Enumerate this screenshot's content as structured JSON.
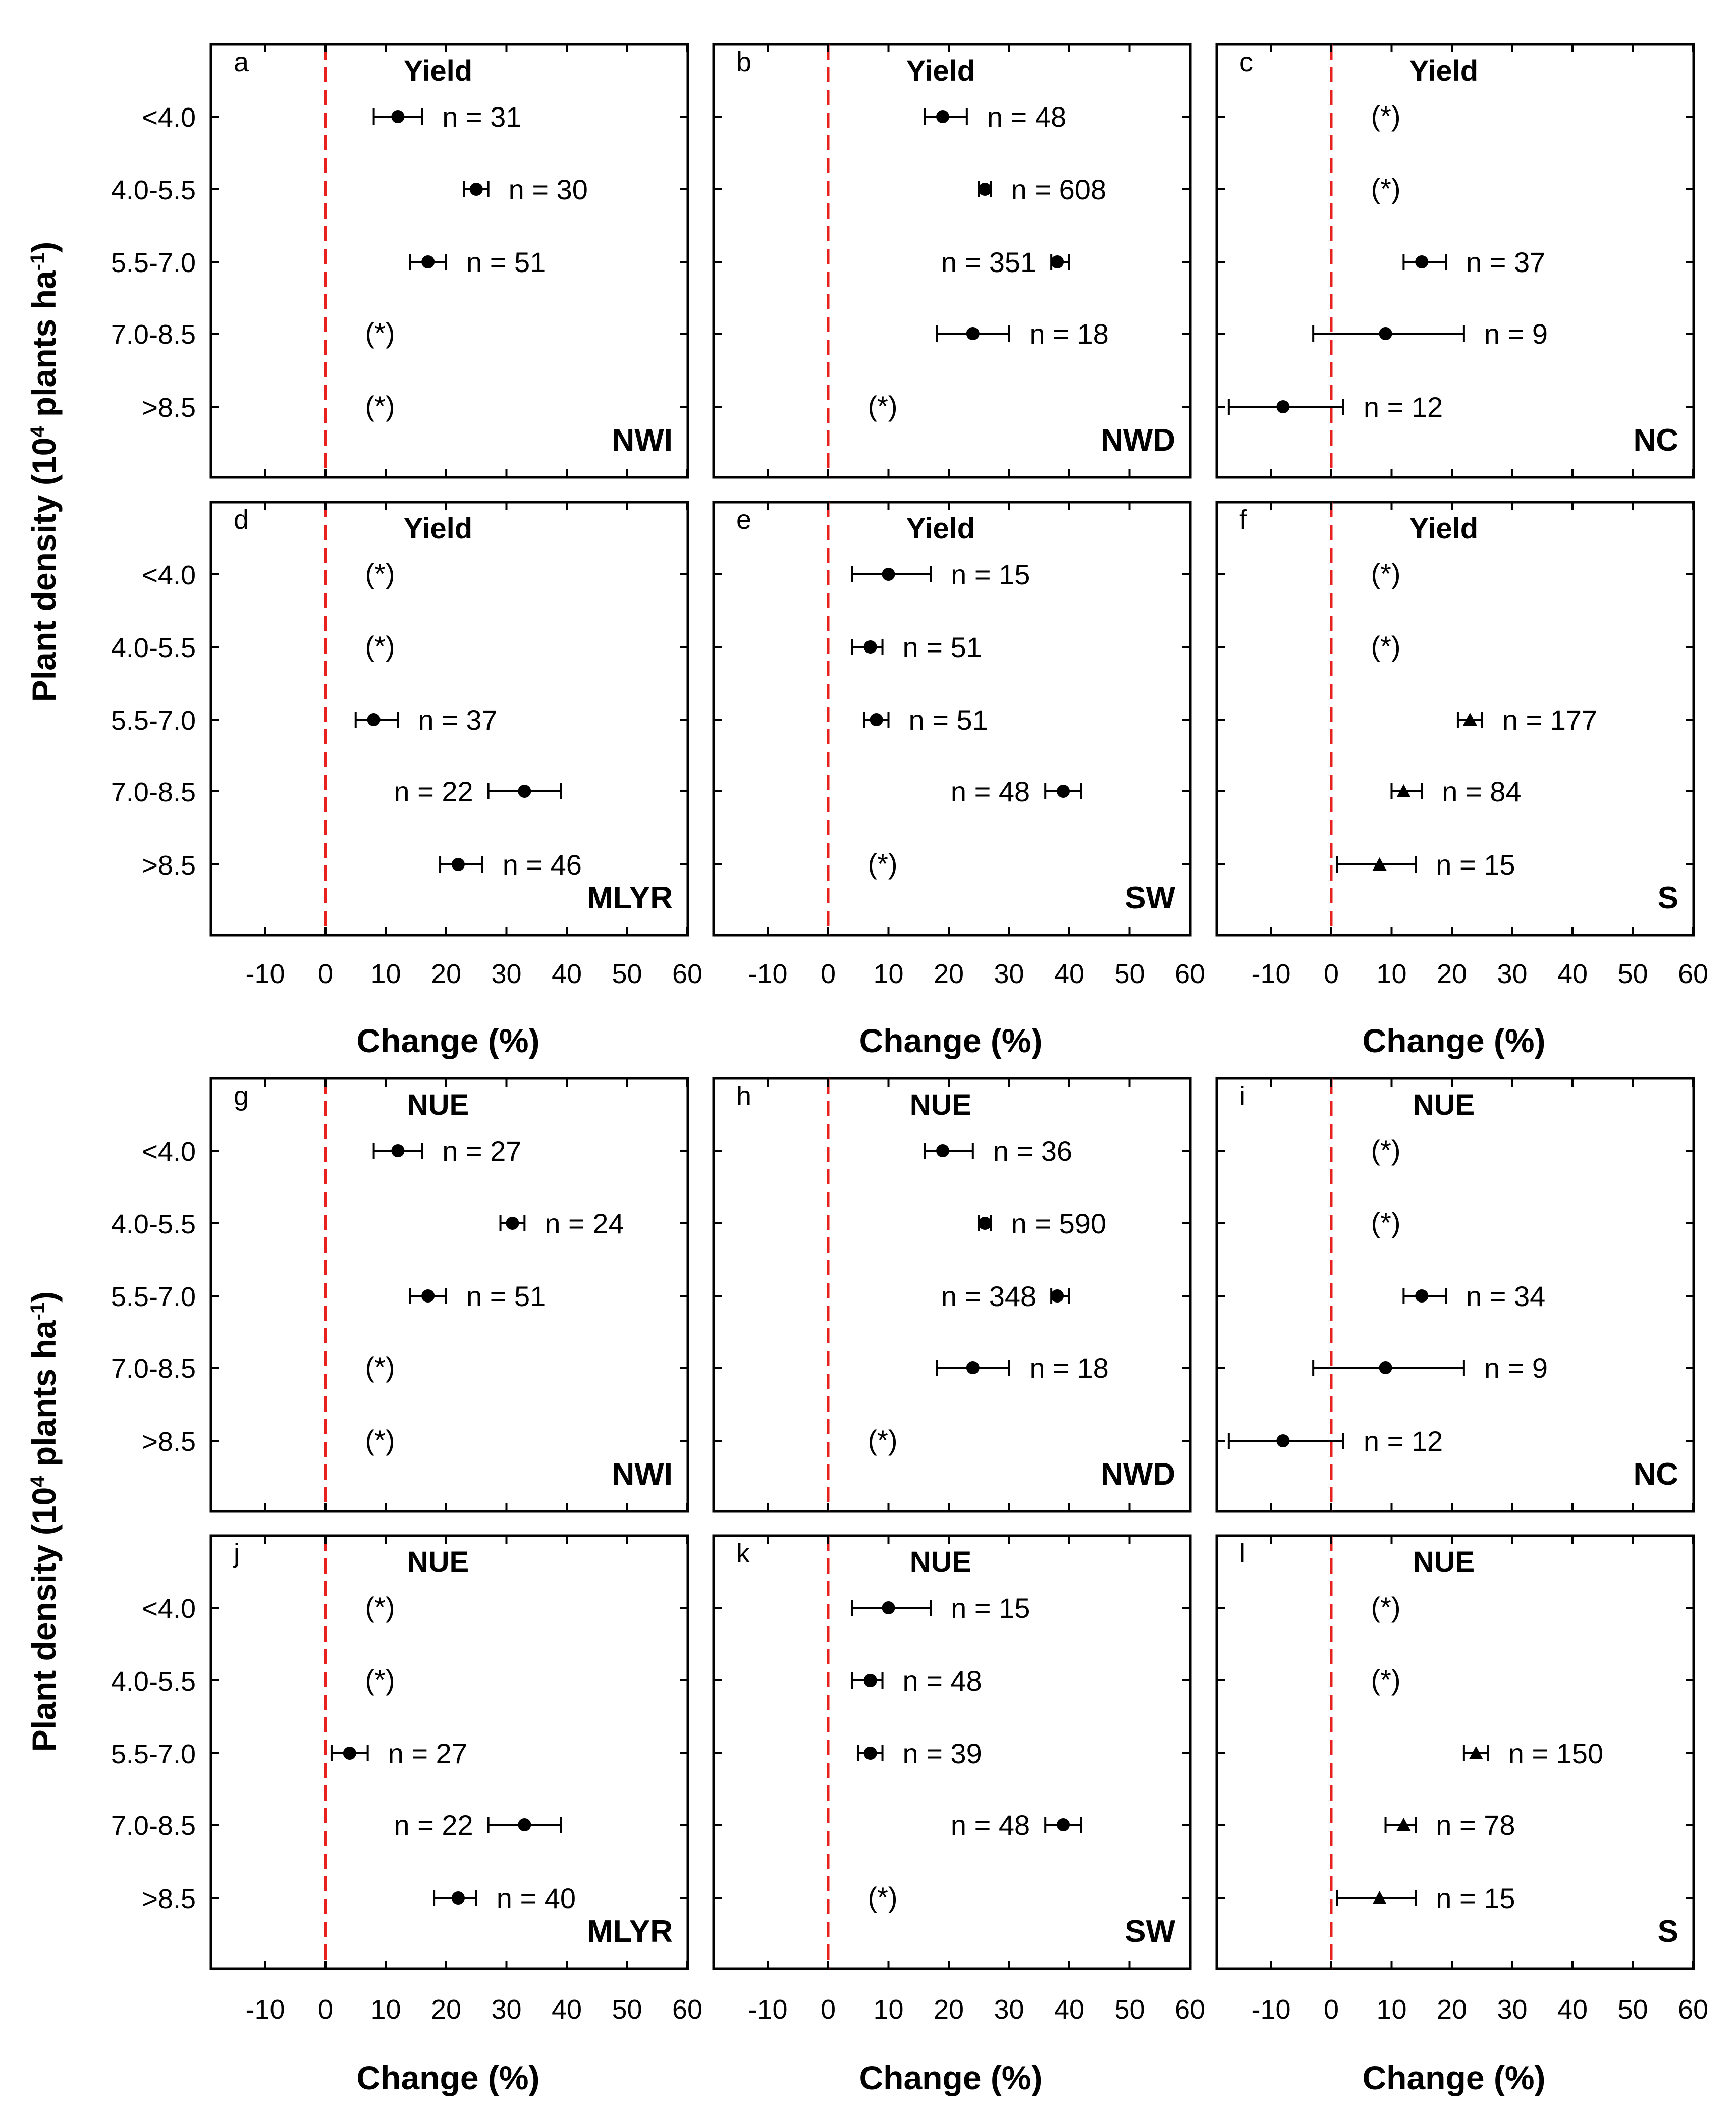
{
  "figure": {
    "y_axis_label": "Plant density (10",
    "y_axis_label_sup1": "4",
    "y_axis_label_mid": " plants ha",
    "y_axis_label_sup2": "-1",
    "y_axis_label_end": ")",
    "x_axis_label": "Change (%)"
  },
  "chart_data": [
    {
      "panel": "a",
      "metric": "Yield",
      "region": "NWI",
      "type": "scatter",
      "xlim": [
        -19,
        60
      ],
      "xticks": [
        -10,
        0,
        10,
        20,
        30,
        40,
        50,
        60
      ],
      "categories": [
        "<4.0",
        "4.0-5.5",
        "5.5-7.0",
        "7.0-8.5",
        ">8.5"
      ],
      "points": [
        {
          "category": "<4.0",
          "mean": 12,
          "lo": 8,
          "hi": 16,
          "marker": "circle",
          "label": "n = 31"
        },
        {
          "category": "4.0-5.5",
          "mean": 25,
          "lo": 23,
          "hi": 27,
          "marker": "circle",
          "label": "n = 30"
        },
        {
          "category": "5.5-7.0",
          "mean": 17,
          "lo": 14,
          "hi": 20,
          "marker": "circle",
          "label": "n = 51"
        },
        {
          "category": "7.0-8.5",
          "mean": null,
          "label": "(*)"
        },
        {
          "category": ">8.5",
          "mean": null,
          "label": "(*)"
        }
      ]
    },
    {
      "panel": "b",
      "metric": "Yield",
      "region": "NWD",
      "type": "scatter",
      "xlim": [
        -19,
        60
      ],
      "xticks": [
        -10,
        0,
        10,
        20,
        30,
        40,
        50,
        60
      ],
      "categories": [
        "<4.0",
        "4.0-5.5",
        "5.5-7.0",
        "7.0-8.5",
        ">8.5"
      ],
      "points": [
        {
          "category": "<4.0",
          "mean": 19,
          "lo": 16,
          "hi": 23,
          "marker": "circle",
          "label": "n = 48"
        },
        {
          "category": "4.0-5.5",
          "mean": 26,
          "lo": 25,
          "hi": 27,
          "marker": "circle",
          "label": "n = 608"
        },
        {
          "category": "5.5-7.0",
          "mean": 38,
          "lo": 37,
          "hi": 40,
          "marker": "circle",
          "label": "n = 351"
        },
        {
          "category": "7.0-8.5",
          "mean": 24,
          "lo": 18,
          "hi": 30,
          "marker": "circle",
          "label": "n = 18"
        },
        {
          "category": ">8.5",
          "mean": null,
          "label": "(*)"
        }
      ]
    },
    {
      "panel": "c",
      "metric": "Yield",
      "region": "NC",
      "type": "scatter",
      "xlim": [
        -19,
        60
      ],
      "xticks": [
        -10,
        0,
        10,
        20,
        30,
        40,
        50,
        60
      ],
      "categories": [
        "<4.0",
        "4.0-5.5",
        "5.5-7.0",
        "7.0-8.5",
        ">8.5"
      ],
      "points": [
        {
          "category": "<4.0",
          "mean": null,
          "label": "(*)"
        },
        {
          "category": "4.0-5.5",
          "mean": null,
          "label": "(*)"
        },
        {
          "category": "5.5-7.0",
          "mean": 15,
          "lo": 12,
          "hi": 19,
          "marker": "circle",
          "label": "n = 37"
        },
        {
          "category": "7.0-8.5",
          "mean": 9,
          "lo": -3,
          "hi": 22,
          "marker": "circle",
          "label": "n = 9"
        },
        {
          "category": ">8.5",
          "mean": -8,
          "lo": -17,
          "hi": 2,
          "marker": "circle",
          "label": "n = 12"
        }
      ]
    },
    {
      "panel": "d",
      "metric": "Yield",
      "region": "MLYR",
      "type": "scatter",
      "xlim": [
        -19,
        60
      ],
      "xticks": [
        -10,
        0,
        10,
        20,
        30,
        40,
        50,
        60
      ],
      "categories": [
        "<4.0",
        "4.0-5.5",
        "5.5-7.0",
        "7.0-8.5",
        ">8.5"
      ],
      "points": [
        {
          "category": "<4.0",
          "mean": null,
          "label": "(*)"
        },
        {
          "category": "4.0-5.5",
          "mean": null,
          "label": "(*)"
        },
        {
          "category": "5.5-7.0",
          "mean": 8,
          "lo": 5,
          "hi": 12,
          "marker": "circle",
          "label": "n = 37"
        },
        {
          "category": "7.0-8.5",
          "mean": 33,
          "lo": 27,
          "hi": 39,
          "marker": "circle",
          "label": "n = 22"
        },
        {
          "category": ">8.5",
          "mean": 22,
          "lo": 19,
          "hi": 26,
          "marker": "circle",
          "label": "n = 46"
        }
      ]
    },
    {
      "panel": "e",
      "metric": "Yield",
      "region": "SW",
      "type": "scatter",
      "xlim": [
        -19,
        60
      ],
      "xticks": [
        -10,
        0,
        10,
        20,
        30,
        40,
        50,
        60
      ],
      "categories": [
        "<4.0",
        "4.0-5.5",
        "5.5-7.0",
        "7.0-8.5",
        ">8.5"
      ],
      "points": [
        {
          "category": "<4.0",
          "mean": 10,
          "lo": 4,
          "hi": 17,
          "marker": "circle",
          "label": "n = 15"
        },
        {
          "category": "4.0-5.5",
          "mean": 7,
          "lo": 4,
          "hi": 9,
          "marker": "circle",
          "label": "n = 51"
        },
        {
          "category": "5.5-7.0",
          "mean": 8,
          "lo": 6,
          "hi": 10,
          "marker": "circle",
          "label": "n = 51"
        },
        {
          "category": "7.0-8.5",
          "mean": 39,
          "lo": 36,
          "hi": 42,
          "marker": "circle",
          "label": "n = 48"
        },
        {
          "category": ">8.5",
          "mean": null,
          "label": "(*)"
        }
      ]
    },
    {
      "panel": "f",
      "metric": "Yield",
      "region": "S",
      "type": "scatter",
      "xlim": [
        -19,
        60
      ],
      "xticks": [
        -10,
        0,
        10,
        20,
        30,
        40,
        50,
        60
      ],
      "categories": [
        "<4.0",
        "4.0-5.5",
        "5.5-7.0",
        "7.0-8.5",
        ">8.5"
      ],
      "points": [
        {
          "category": "<4.0",
          "mean": null,
          "label": "(*)"
        },
        {
          "category": "4.0-5.5",
          "mean": null,
          "label": "(*)"
        },
        {
          "category": "5.5-7.0",
          "mean": 23,
          "lo": 21,
          "hi": 25,
          "marker": "triangle",
          "label": "n = 177"
        },
        {
          "category": "7.0-8.5",
          "mean": 12,
          "lo": 10,
          "hi": 15,
          "marker": "triangle",
          "label": "n = 84"
        },
        {
          "category": ">8.5",
          "mean": 8,
          "lo": 1,
          "hi": 14,
          "marker": "triangle",
          "label": "n = 15"
        }
      ]
    },
    {
      "panel": "g",
      "metric": "NUE",
      "region": "NWI",
      "type": "scatter",
      "xlim": [
        -19,
        60
      ],
      "xticks": [
        -10,
        0,
        10,
        20,
        30,
        40,
        50,
        60
      ],
      "categories": [
        "<4.0",
        "4.0-5.5",
        "5.5-7.0",
        "7.0-8.5",
        ">8.5"
      ],
      "points": [
        {
          "category": "<4.0",
          "mean": 12,
          "lo": 8,
          "hi": 16,
          "marker": "circle",
          "label": "n = 27"
        },
        {
          "category": "4.0-5.5",
          "mean": 31,
          "lo": 29,
          "hi": 33,
          "marker": "circle",
          "label": "n = 24"
        },
        {
          "category": "5.5-7.0",
          "mean": 17,
          "lo": 14,
          "hi": 20,
          "marker": "circle",
          "label": "n = 51"
        },
        {
          "category": "7.0-8.5",
          "mean": null,
          "label": "(*)"
        },
        {
          "category": ">8.5",
          "mean": null,
          "label": "(*)"
        }
      ]
    },
    {
      "panel": "h",
      "metric": "NUE",
      "region": "NWD",
      "type": "scatter",
      "xlim": [
        -19,
        60
      ],
      "xticks": [
        -10,
        0,
        10,
        20,
        30,
        40,
        50,
        60
      ],
      "categories": [
        "<4.0",
        "4.0-5.5",
        "5.5-7.0",
        "7.0-8.5",
        ">8.5"
      ],
      "points": [
        {
          "category": "<4.0",
          "mean": 19,
          "lo": 16,
          "hi": 24,
          "marker": "circle",
          "label": "n = 36"
        },
        {
          "category": "4.0-5.5",
          "mean": 26,
          "lo": 25,
          "hi": 27,
          "marker": "circle",
          "label": "n = 590"
        },
        {
          "category": "5.5-7.0",
          "mean": 38,
          "lo": 37,
          "hi": 40,
          "marker": "circle",
          "label": "n = 348"
        },
        {
          "category": "7.0-8.5",
          "mean": 24,
          "lo": 18,
          "hi": 30,
          "marker": "circle",
          "label": "n = 18"
        },
        {
          "category": ">8.5",
          "mean": null,
          "label": "(*)"
        }
      ]
    },
    {
      "panel": "i",
      "metric": "NUE",
      "region": "NC",
      "type": "scatter",
      "xlim": [
        -19,
        60
      ],
      "xticks": [
        -10,
        0,
        10,
        20,
        30,
        40,
        50,
        60
      ],
      "categories": [
        "<4.0",
        "4.0-5.5",
        "5.5-7.0",
        "7.0-8.5",
        ">8.5"
      ],
      "points": [
        {
          "category": "<4.0",
          "mean": null,
          "label": "(*)"
        },
        {
          "category": "4.0-5.5",
          "mean": null,
          "label": "(*)"
        },
        {
          "category": "5.5-7.0",
          "mean": 15,
          "lo": 12,
          "hi": 19,
          "marker": "circle",
          "label": "n = 34"
        },
        {
          "category": "7.0-8.5",
          "mean": 9,
          "lo": -3,
          "hi": 22,
          "marker": "circle",
          "label": "n = 9"
        },
        {
          "category": ">8.5",
          "mean": -8,
          "lo": -17,
          "hi": 2,
          "marker": "circle",
          "label": "n = 12"
        }
      ]
    },
    {
      "panel": "j",
      "metric": "NUE",
      "region": "MLYR",
      "type": "scatter",
      "xlim": [
        -19,
        60
      ],
      "xticks": [
        -10,
        0,
        10,
        20,
        30,
        40,
        50,
        60
      ],
      "categories": [
        "<4.0",
        "4.0-5.5",
        "5.5-7.0",
        "7.0-8.5",
        ">8.5"
      ],
      "points": [
        {
          "category": "<4.0",
          "mean": null,
          "label": "(*)"
        },
        {
          "category": "4.0-5.5",
          "mean": null,
          "label": "(*)"
        },
        {
          "category": "5.5-7.0",
          "mean": 4,
          "lo": 1,
          "hi": 7,
          "marker": "circle",
          "label": "n = 27"
        },
        {
          "category": "7.0-8.5",
          "mean": 33,
          "lo": 27,
          "hi": 39,
          "marker": "circle",
          "label": "n = 22"
        },
        {
          "category": ">8.5",
          "mean": 22,
          "lo": 18,
          "hi": 25,
          "marker": "circle",
          "label": "n = 40"
        }
      ]
    },
    {
      "panel": "k",
      "metric": "NUE",
      "region": "SW",
      "type": "scatter",
      "xlim": [
        -19,
        60
      ],
      "xticks": [
        -10,
        0,
        10,
        20,
        30,
        40,
        50,
        60
      ],
      "categories": [
        "<4.0",
        "4.0-5.5",
        "5.5-7.0",
        "7.0-8.5",
        ">8.5"
      ],
      "points": [
        {
          "category": "<4.0",
          "mean": 10,
          "lo": 4,
          "hi": 17,
          "marker": "circle",
          "label": "n = 15"
        },
        {
          "category": "4.0-5.5",
          "mean": 7,
          "lo": 4,
          "hi": 9,
          "marker": "circle",
          "label": "n = 48"
        },
        {
          "category": "5.5-7.0",
          "mean": 7,
          "lo": 5,
          "hi": 9,
          "marker": "circle",
          "label": "n = 39"
        },
        {
          "category": "7.0-8.5",
          "mean": 39,
          "lo": 36,
          "hi": 42,
          "marker": "circle",
          "label": "n = 48"
        },
        {
          "category": ">8.5",
          "mean": null,
          "label": "(*)"
        }
      ]
    },
    {
      "panel": "l",
      "metric": "NUE",
      "region": "S",
      "type": "scatter",
      "xlim": [
        -19,
        60
      ],
      "xticks": [
        -10,
        0,
        10,
        20,
        30,
        40,
        50,
        60
      ],
      "categories": [
        "<4.0",
        "4.0-5.5",
        "5.5-7.0",
        "7.0-8.5",
        ">8.5"
      ],
      "points": [
        {
          "category": "<4.0",
          "mean": null,
          "label": "(*)"
        },
        {
          "category": "4.0-5.5",
          "mean": null,
          "label": "(*)"
        },
        {
          "category": "5.5-7.0",
          "mean": 24,
          "lo": 22,
          "hi": 26,
          "marker": "triangle",
          "label": "n = 150"
        },
        {
          "category": "7.0-8.5",
          "mean": 12,
          "lo": 9,
          "hi": 14,
          "marker": "triangle",
          "label": "n = 78"
        },
        {
          "category": ">8.5",
          "mean": 8,
          "lo": 1,
          "hi": 14,
          "marker": "triangle",
          "label": "n = 15"
        }
      ]
    }
  ],
  "colors": {
    "reference_line": "#e8211f",
    "axis": "#000000",
    "marker": "#000000"
  }
}
